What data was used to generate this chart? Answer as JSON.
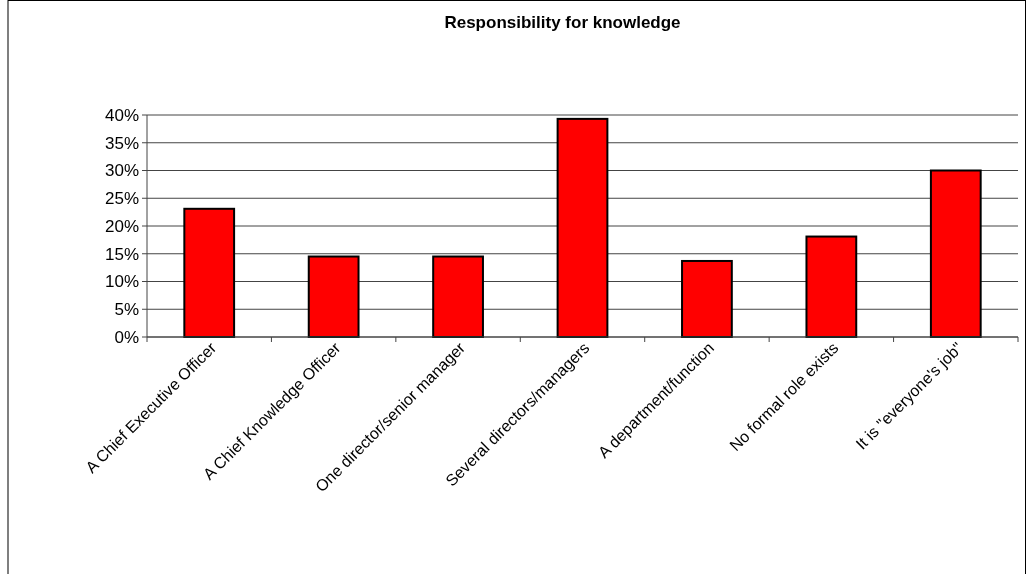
{
  "chart_data": {
    "type": "bar",
    "title": "Responsibility for knowledge",
    "categories": [
      "A Chief Executive Officer",
      "A Chief Knowledge Officer",
      "One director/senior manager",
      "Several directors/managers",
      "A department/function",
      "No formal role exists",
      "It is \"everyone's job\""
    ],
    "values": [
      23.1,
      14.5,
      14.5,
      39.3,
      13.7,
      18.1,
      30.0
    ],
    "color": "#ff0000",
    "ylim": [
      0,
      40
    ],
    "yticks": [
      {
        "value": 0,
        "label": "0%"
      },
      {
        "value": 5,
        "label": "5%"
      },
      {
        "value": 10,
        "label": "10%"
      },
      {
        "value": 15,
        "label": "15%"
      },
      {
        "value": 20,
        "label": "20%"
      },
      {
        "value": 25,
        "label": "25%"
      },
      {
        "value": 30,
        "label": "30%"
      },
      {
        "value": 35,
        "label": "35%"
      },
      {
        "value": 40,
        "label": "40%"
      }
    ],
    "grid": "y"
  }
}
